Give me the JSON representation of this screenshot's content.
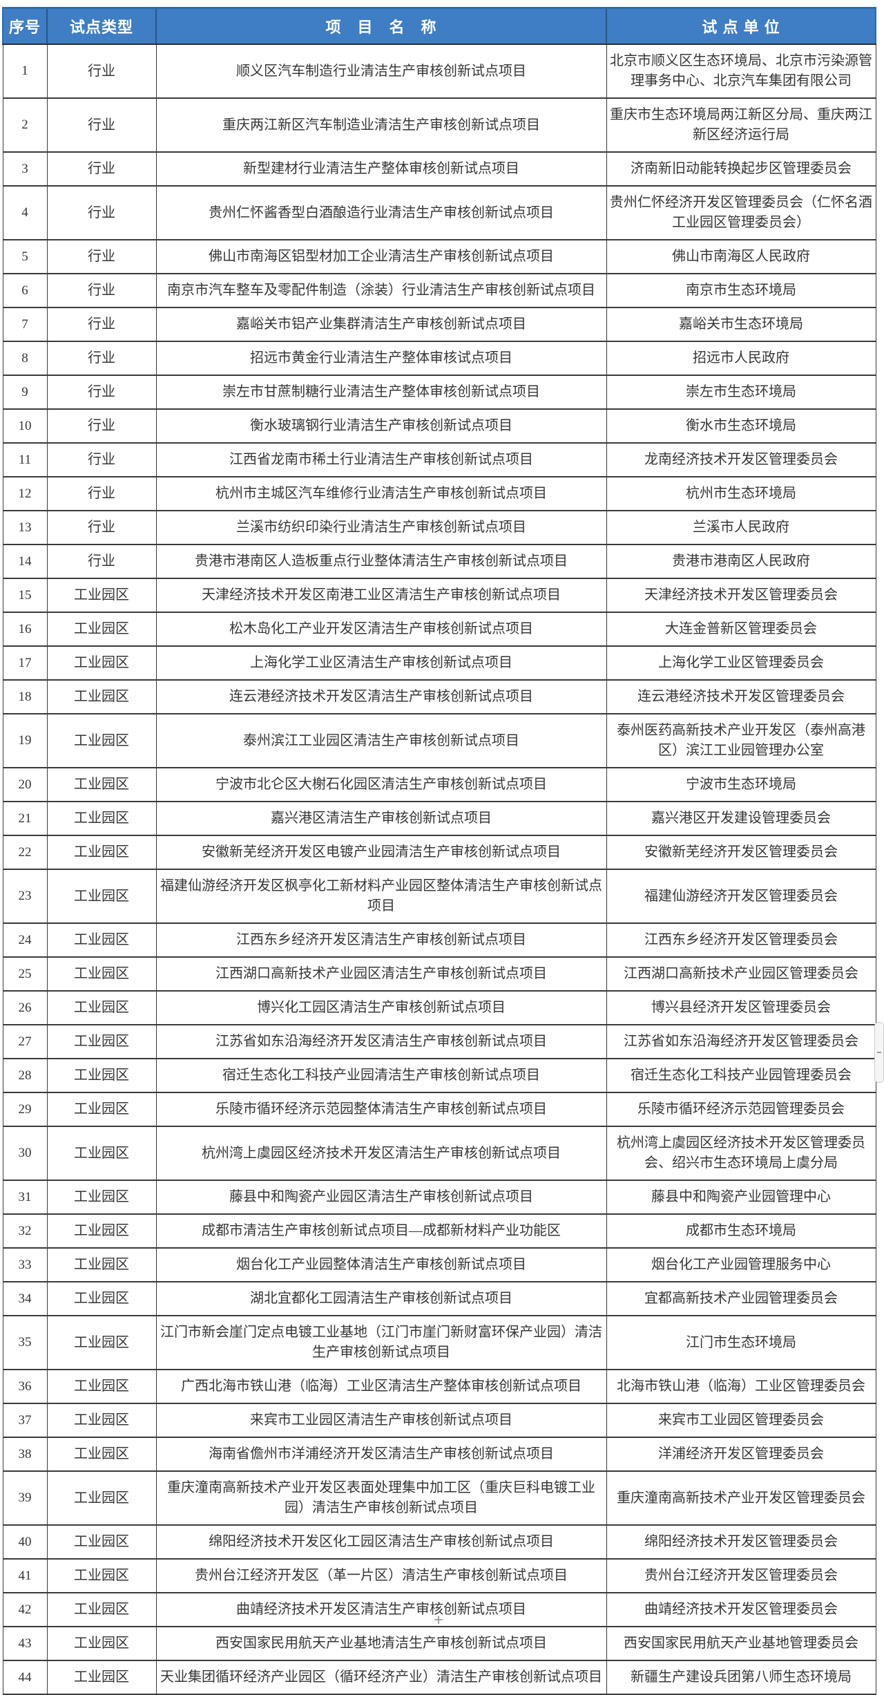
{
  "colors": {
    "header_bg": "#3F7DC4",
    "header_text": "#FFFFFF",
    "header_divider": "#27568C",
    "cell_border": "#3A3A3A",
    "body_text": "#363636",
    "page_bg": "#FFFFFF"
  },
  "table": {
    "headers": {
      "no": "序号",
      "type": "试点类型",
      "project": "项　目　名　称",
      "unit": "试 点 单 位"
    },
    "rows": [
      {
        "no": "1",
        "type": "行业",
        "project": "顺义区汽车制造行业清洁生产审核创新试点项目",
        "unit": "北京市顺义区生态环境局、北京市污染源管理事务中心、北京汽车集团有限公司"
      },
      {
        "no": "2",
        "type": "行业",
        "project": "重庆两江新区汽车制造业清洁生产审核创新试点项目",
        "unit": "重庆市生态环境局两江新区分局、重庆两江新区经济运行局"
      },
      {
        "no": "3",
        "type": "行业",
        "project": "新型建材行业清洁生产整体审核创新试点项目",
        "unit": "济南新旧动能转换起步区管理委员会"
      },
      {
        "no": "4",
        "type": "行业",
        "project": "贵州仁怀酱香型白酒酿造行业清洁生产审核创新试点项目",
        "unit": "贵州仁怀经济开发区管理委员会（仁怀名酒工业园区管理委员会）"
      },
      {
        "no": "5",
        "type": "行业",
        "project": "佛山市南海区铝型材加工企业清洁生产审核创新试点项目",
        "unit": "佛山市南海区人民政府"
      },
      {
        "no": "6",
        "type": "行业",
        "project": "南京市汽车整车及零配件制造（涂装）行业清洁生产审核创新试点项目",
        "unit": "南京市生态环境局"
      },
      {
        "no": "7",
        "type": "行业",
        "project": "嘉峪关市铝产业集群清洁生产审核创新试点项目",
        "unit": "嘉峪关市生态环境局"
      },
      {
        "no": "8",
        "type": "行业",
        "project": "招远市黄金行业清洁生产整体审核试点项目",
        "unit": "招远市人民政府"
      },
      {
        "no": "9",
        "type": "行业",
        "project": "崇左市甘蔗制糖行业清洁生产整体审核创新试点项目",
        "unit": "崇左市生态环境局"
      },
      {
        "no": "10",
        "type": "行业",
        "project": "衡水玻璃钢行业清洁生产审核创新试点项目",
        "unit": "衡水市生态环境局"
      },
      {
        "no": "11",
        "type": "行业",
        "project": "江西省龙南市稀土行业清洁生产审核创新试点项目",
        "unit": "龙南经济技术开发区管理委员会"
      },
      {
        "no": "12",
        "type": "行业",
        "project": "杭州市主城区汽车维修行业清洁生产审核创新试点项目",
        "unit": "杭州市生态环境局"
      },
      {
        "no": "13",
        "type": "行业",
        "project": "兰溪市纺织印染行业清洁生产审核创新试点项目",
        "unit": "兰溪市人民政府"
      },
      {
        "no": "14",
        "type": "行业",
        "project": "贵港市港南区人造板重点行业整体清洁生产审核创新试点项目",
        "unit": "贵港市港南区人民政府"
      },
      {
        "no": "15",
        "type": "工业园区",
        "project": "天津经济技术开发区南港工业区清洁生产审核创新试点项目",
        "unit": "天津经济技术开发区管理委员会"
      },
      {
        "no": "16",
        "type": "工业园区",
        "project": "松木岛化工产业开发区清洁生产审核创新试点项目",
        "unit": "大连金普新区管理委员会"
      },
      {
        "no": "17",
        "type": "工业园区",
        "project": "上海化学工业区清洁生产审核创新试点项目",
        "unit": "上海化学工业区管理委员会"
      },
      {
        "no": "18",
        "type": "工业园区",
        "project": "连云港经济技术开发区清洁生产审核创新试点项目",
        "unit": "连云港经济技术开发区管理委员会"
      },
      {
        "no": "19",
        "type": "工业园区",
        "project": "泰州滨江工业园区清洁生产审核创新试点项目",
        "unit": "泰州医药高新技术产业开发区（泰州高港区）滨江工业园管理办公室"
      },
      {
        "no": "20",
        "type": "工业园区",
        "project": "宁波市北仑区大榭石化园区清洁生产审核创新试点项目",
        "unit": "宁波市生态环境局"
      },
      {
        "no": "21",
        "type": "工业园区",
        "project": "嘉兴港区清洁生产审核创新试点项目",
        "unit": "嘉兴港区开发建设管理委员会"
      },
      {
        "no": "22",
        "type": "工业园区",
        "project": "安徽新芜经济开发区电镀产业园清洁生产审核创新试点项目",
        "unit": "安徽新芜经济开发区管理委员会"
      },
      {
        "no": "23",
        "type": "工业园区",
        "project": "福建仙游经济开发区枫亭化工新材料产业园区整体清洁生产审核创新试点项目",
        "unit": "福建仙游经济开发区管理委员会"
      },
      {
        "no": "24",
        "type": "工业园区",
        "project": "江西东乡经济开发区清洁生产审核创新试点项目",
        "unit": "江西东乡经济开发区管理委员会"
      },
      {
        "no": "25",
        "type": "工业园区",
        "project": "江西湖口高新技术产业园区清洁生产审核创新试点项目",
        "unit": "江西湖口高新技术产业园区管理委员会"
      },
      {
        "no": "26",
        "type": "工业园区",
        "project": "博兴化工园区清洁生产审核创新试点项目",
        "unit": "博兴县经济开发区管理委员会"
      },
      {
        "no": "27",
        "type": "工业园区",
        "project": "江苏省如东沿海经济开发区清洁生产审核创新试点项目",
        "unit": "江苏省如东沿海经济开发区管理委员会"
      },
      {
        "no": "28",
        "type": "工业园区",
        "project": "宿迁生态化工科技产业园清洁生产审核创新试点项目",
        "unit": "宿迁生态化工科技产业园管理委员会"
      },
      {
        "no": "29",
        "type": "工业园区",
        "project": "乐陵市循环经济示范园整体清洁生产审核创新试点项目",
        "unit": "乐陵市循环经济示范园管理委员会"
      },
      {
        "no": "30",
        "type": "工业园区",
        "project": "杭州湾上虞园区经济技术开发区清洁生产审核创新试点项目",
        "unit": "杭州湾上虞园区经济技术开发区管理委员会、绍兴市生态环境局上虞分局"
      },
      {
        "no": "31",
        "type": "工业园区",
        "project": "藤县中和陶瓷产业园区清洁生产审核创新试点项目",
        "unit": "藤县中和陶瓷产业园管理中心"
      },
      {
        "no": "32",
        "type": "工业园区",
        "project": "成都市清洁生产审核创新试点项目—成都新材料产业功能区",
        "unit": "成都市生态环境局"
      },
      {
        "no": "33",
        "type": "工业园区",
        "project": "烟台化工产业园整体清洁生产审核创新试点项目",
        "unit": "烟台化工产业园管理服务中心"
      },
      {
        "no": "34",
        "type": "工业园区",
        "project": "湖北宜都化工园清洁生产审核创新试点项目",
        "unit": "宜都高新技术产业园管理委员会"
      },
      {
        "no": "35",
        "type": "工业园区",
        "project": "江门市新会崖门定点电镀工业基地（江门市崖门新财富环保产业园）清洁生产审核创新试点项目",
        "unit": "江门市生态环境局"
      },
      {
        "no": "36",
        "type": "工业园区",
        "project": "广西北海市铁山港（临海）工业区清洁生产整体审核创新试点项目",
        "unit": "北海市铁山港（临海）工业区管理委员会"
      },
      {
        "no": "37",
        "type": "工业园区",
        "project": "来宾市工业园区清洁生产审核创新试点项目",
        "unit": "来宾市工业园区管理委员会"
      },
      {
        "no": "38",
        "type": "工业园区",
        "project": "海南省儋州市洋浦经济开发区清洁生产审核创新试点项目",
        "unit": "洋浦经济开发区管理委员会"
      },
      {
        "no": "39",
        "type": "工业园区",
        "project": "重庆潼南高新技术产业开发区表面处理集中加工区（重庆巨科电镀工业园）清洁生产审核创新试点项目",
        "unit": "重庆潼南高新技术产业开发区管理委员会"
      },
      {
        "no": "40",
        "type": "工业园区",
        "project": "绵阳经济技术开发区化工园区清洁生产审核创新试点项目",
        "unit": "绵阳经济技术开发区管理委员会"
      },
      {
        "no": "41",
        "type": "工业园区",
        "project": "贵州台江经济开发区（革一片区）清洁生产审核创新试点项目",
        "unit": "贵州台江经济开发区管理委员会"
      },
      {
        "no": "42",
        "type": "工业园区",
        "project": "曲靖经济技术开发区清洁生产审核创新试点项目",
        "unit": "曲靖经济技术开发区管理委员会"
      },
      {
        "no": "43",
        "type": "工业园区",
        "project": "西安国家民用航天产业基地清洁生产审核创新试点项目",
        "unit": "西安国家民用航天产业基地管理委员会"
      },
      {
        "no": "44",
        "type": "工业园区",
        "project": "天业集团循环经济产业园区（循环经济产业）清洁生产审核创新试点项目",
        "unit": "新疆生产建设兵团第八师生态环境局"
      }
    ]
  },
  "artifacts": {
    "scrollbar_thumb": "scrollbar-thumb",
    "plus_cursor_glyph": "+"
  }
}
